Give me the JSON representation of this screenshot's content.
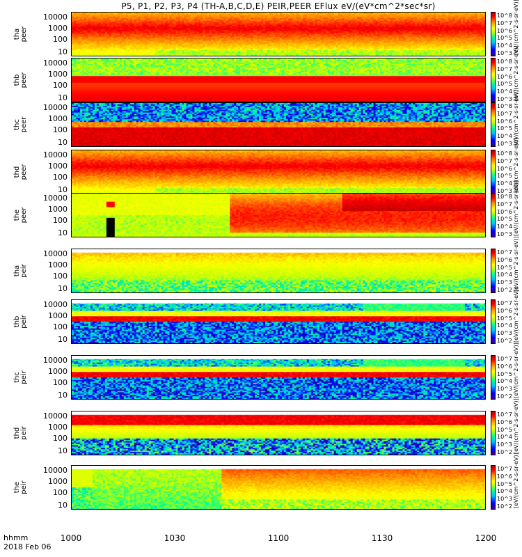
{
  "title": "P5, P1, P2, P3, P4 (TH-A,B,C,D,E) PEIR,PEER EFlux eV/(eV*cm^2*sec*sr)",
  "chart_data": {
    "type": "heatmap",
    "title": "P5, P1, P2, P3, P4 (TH-A,B,C,D,E) PEIR,PEER EFlux eV/(eV*cm^2*sec*sr)",
    "x_axis": {
      "label": "hhmm",
      "date": "2018 Feb 06",
      "ticks": [
        "1000",
        "1030",
        "1100",
        "1130",
        "1200"
      ]
    },
    "y_ticks": [
      "10000",
      "1000",
      "100",
      "10"
    ],
    "colorbar": {
      "title": "[eV/(cm^2-s-sr-eV)]",
      "ticks_electron": [
        "10^8",
        "10^7",
        "10^6",
        "10^5",
        "10^4",
        "10^3"
      ],
      "ticks_ion": [
        "10^7",
        "10^6",
        "10^5",
        "10^4",
        "10^3",
        "10^2"
      ],
      "colors": [
        "#3a0090",
        "#0000ff",
        "#00c0ff",
        "#00ff90",
        "#c8ff00",
        "#ffff00",
        "#ff9000",
        "#ff0000",
        "#b00000"
      ]
    },
    "panels": [
      {
        "probe": "tha",
        "species": "peer",
        "pattern": "dense-red-top"
      },
      {
        "probe": "thb",
        "species": "peer",
        "pattern": "bands"
      },
      {
        "probe": "thc",
        "species": "peer",
        "pattern": "blue-noise-top"
      },
      {
        "probe": "thd",
        "species": "peer",
        "pattern": "dense-red-top"
      },
      {
        "probe": "the",
        "species": "peer",
        "pattern": "evolving"
      },
      {
        "probe": "tha",
        "species": "peir",
        "pattern": "yellow-green"
      },
      {
        "probe": "thb",
        "species": "peir",
        "pattern": "noise-band"
      },
      {
        "probe": "thc",
        "species": "peir",
        "pattern": "noise-band"
      },
      {
        "probe": "thd",
        "species": "peir",
        "pattern": "red-top-noise"
      },
      {
        "probe": "the",
        "species": "peir",
        "pattern": "ion-evolving"
      }
    ]
  }
}
